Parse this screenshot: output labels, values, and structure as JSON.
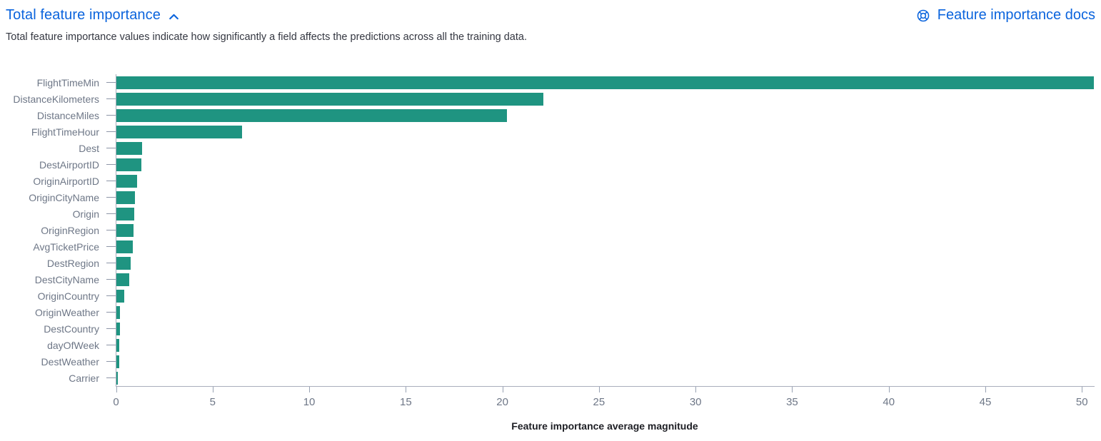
{
  "header": {
    "title": "Total feature importance",
    "docs_label": "Feature importance docs"
  },
  "description": "Total feature importance values indicate how significantly a field affects the predictions across all the training data.",
  "colors": {
    "link_blue": "#0b64dd",
    "bar_teal": "#1f9481",
    "axis_line": "#a9aebc",
    "tick_gray": "#98a2b3",
    "label_gray": "#6e7787",
    "text_dark": "#343741"
  },
  "chart_data": {
    "type": "bar",
    "orientation": "horizontal",
    "title": "Total feature importance",
    "xlabel": "Feature importance average magnitude",
    "ylabel": "",
    "categories": [
      "FlightTimeMin",
      "DistanceKilometers",
      "DistanceMiles",
      "FlightTimeHour",
      "Dest",
      "DestAirportID",
      "OriginAirportID",
      "OriginCityName",
      "Origin",
      "OriginRegion",
      "AvgTicketPrice",
      "DestRegion",
      "DestCityName",
      "OriginCountry",
      "OriginWeather",
      "DestCountry",
      "dayOfWeek",
      "DestWeather",
      "Carrier"
    ],
    "values": [
      50.6,
      22.1,
      20.2,
      6.5,
      1.33,
      1.3,
      1.07,
      0.97,
      0.92,
      0.89,
      0.85,
      0.74,
      0.66,
      0.42,
      0.19,
      0.17,
      0.15,
      0.14,
      0.06
    ],
    "xlim": [
      0,
      50.6
    ],
    "xticks": [
      0,
      5,
      10,
      15,
      20,
      25,
      30,
      35,
      40,
      45,
      50
    ],
    "grid": false,
    "legend": "none"
  }
}
